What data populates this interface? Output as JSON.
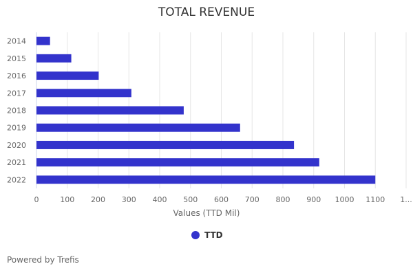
{
  "chart_data": {
    "type": "bar",
    "orientation": "horizontal",
    "title": "TOTAL REVENUE",
    "xlabel": "Values (TTD Mil)",
    "categories": [
      "2014",
      "2015",
      "2016",
      "2017",
      "2018",
      "2019",
      "2020",
      "2021",
      "2022"
    ],
    "series": [
      {
        "name": "TTD",
        "values": [
          44,
          113,
          202,
          308,
          478,
          661,
          836,
          918,
          1100
        ],
        "color": "#3333cc"
      }
    ],
    "xlim": [
      0,
      1200
    ],
    "xticks": [
      "0",
      "100",
      "200",
      "300",
      "400",
      "500",
      "600",
      "700",
      "800",
      "900",
      "1000",
      "1100",
      "1..."
    ],
    "grid": true,
    "legend": "bottom"
  },
  "footer": {
    "credit": "Powered by Trefis"
  }
}
